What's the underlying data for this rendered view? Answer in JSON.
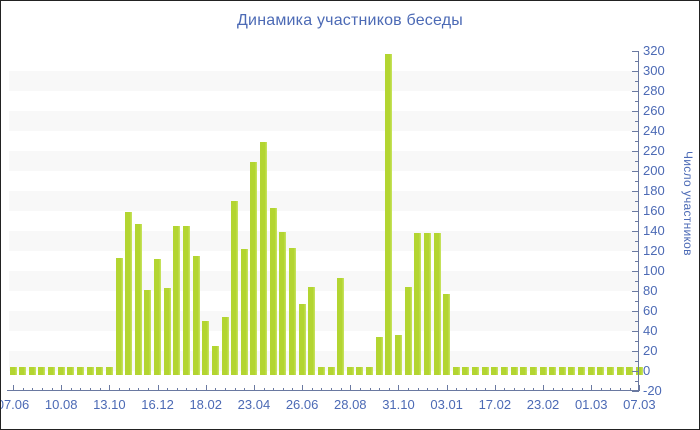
{
  "chart_data": {
    "type": "bar",
    "title": "Динамика участников беседы",
    "ylabel": "Число участников",
    "x_tick_labels": [
      "07.06",
      "10.08",
      "13.10",
      "16.12",
      "18.02",
      "23.04",
      "26.06",
      "28.08",
      "31.10",
      "03.01",
      "17.02",
      "23.02",
      "01.03",
      "07.03"
    ],
    "bars_per_label": 5,
    "ylim": [
      -20,
      320
    ],
    "y_tick_step": 20,
    "y_minor_tick_step": 10,
    "grid_bands_on": true,
    "legend": "none",
    "values": [
      3,
      3,
      3,
      3,
      3,
      3,
      3,
      3,
      3,
      3,
      3,
      112,
      158,
      146,
      80,
      111,
      82,
      144,
      144,
      114,
      49,
      24,
      53,
      169,
      121,
      208,
      228,
      162,
      138,
      122,
      66,
      83,
      3,
      3,
      92,
      3,
      3,
      3,
      33,
      316,
      35,
      83,
      137,
      137,
      137,
      76,
      3,
      3,
      3,
      3,
      3,
      3,
      3,
      3,
      3,
      3,
      3,
      3,
      3,
      3,
      3,
      3,
      3,
      3,
      3,
      3
    ],
    "colors": {
      "bar": "#b3d531",
      "bar_edge_highlight": "#c9e464",
      "text": "#4c6ab5",
      "axis": "#6a79a1",
      "band": "#f8f8f8",
      "background": "#ffffff",
      "border": "#222222"
    }
  }
}
